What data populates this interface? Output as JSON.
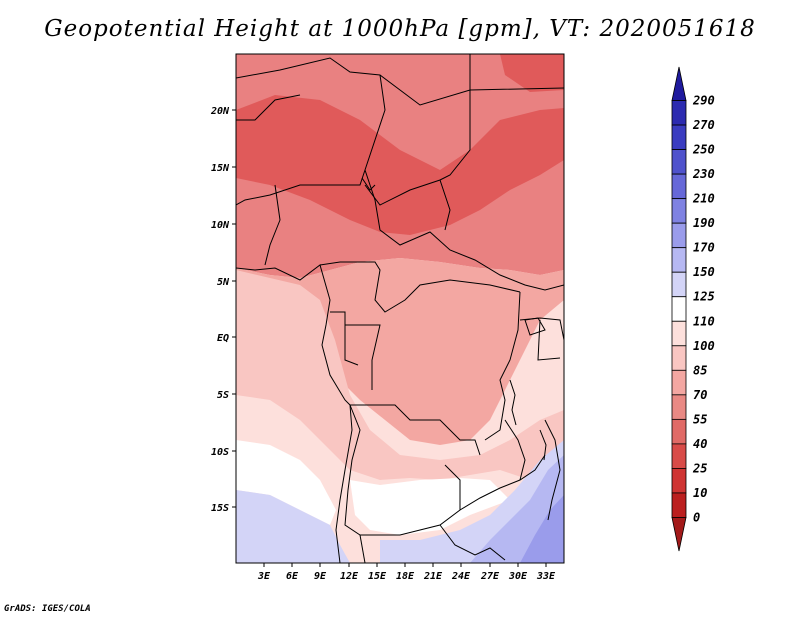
{
  "title": "Geopotential Height at 1000hPa [gpm], VT: 2020051618",
  "credit": "GrADS: IGES/COLA",
  "map": {
    "lat_labels": [
      "20N",
      "15N",
      "10N",
      "5N",
      "EQ",
      "5S",
      "10S",
      "15S"
    ],
    "lon_labels": [
      "3E",
      "6E",
      "9E",
      "12E",
      "15E",
      "18E",
      "21E",
      "24E",
      "27E",
      "30E",
      "33E"
    ]
  },
  "colorbar": {
    "levels": [
      "290",
      "270",
      "250",
      "230",
      "210",
      "190",
      "170",
      "150",
      "125",
      "110",
      "100",
      "85",
      "70",
      "55",
      "40",
      "25",
      "10",
      "0"
    ],
    "colors_top_to_bottom": [
      "#1f1a9e",
      "#2c2bb0",
      "#3a3cc0",
      "#4f52cc",
      "#6668d8",
      "#7f82e2",
      "#9a9ceb",
      "#b6b8f2",
      "#d3d4f7",
      "#ffffff",
      "#fde0dc",
      "#f9c6c2",
      "#f3a7a2",
      "#e98984",
      "#e06a66",
      "#d84b48",
      "#cf3433",
      "#bb1f1f",
      "#a31a1a"
    ]
  },
  "field_colors": {
    "deep_red": "#e05a5a",
    "red": "#e98181",
    "light_red": "#f3a7a2",
    "pink": "#f9c6c2",
    "pale_pink": "#fde0dc",
    "white": "#ffffff",
    "pale_blue": "#d3d4f7",
    "light_blue": "#b6b8f2",
    "blue": "#9a9ceb"
  }
}
